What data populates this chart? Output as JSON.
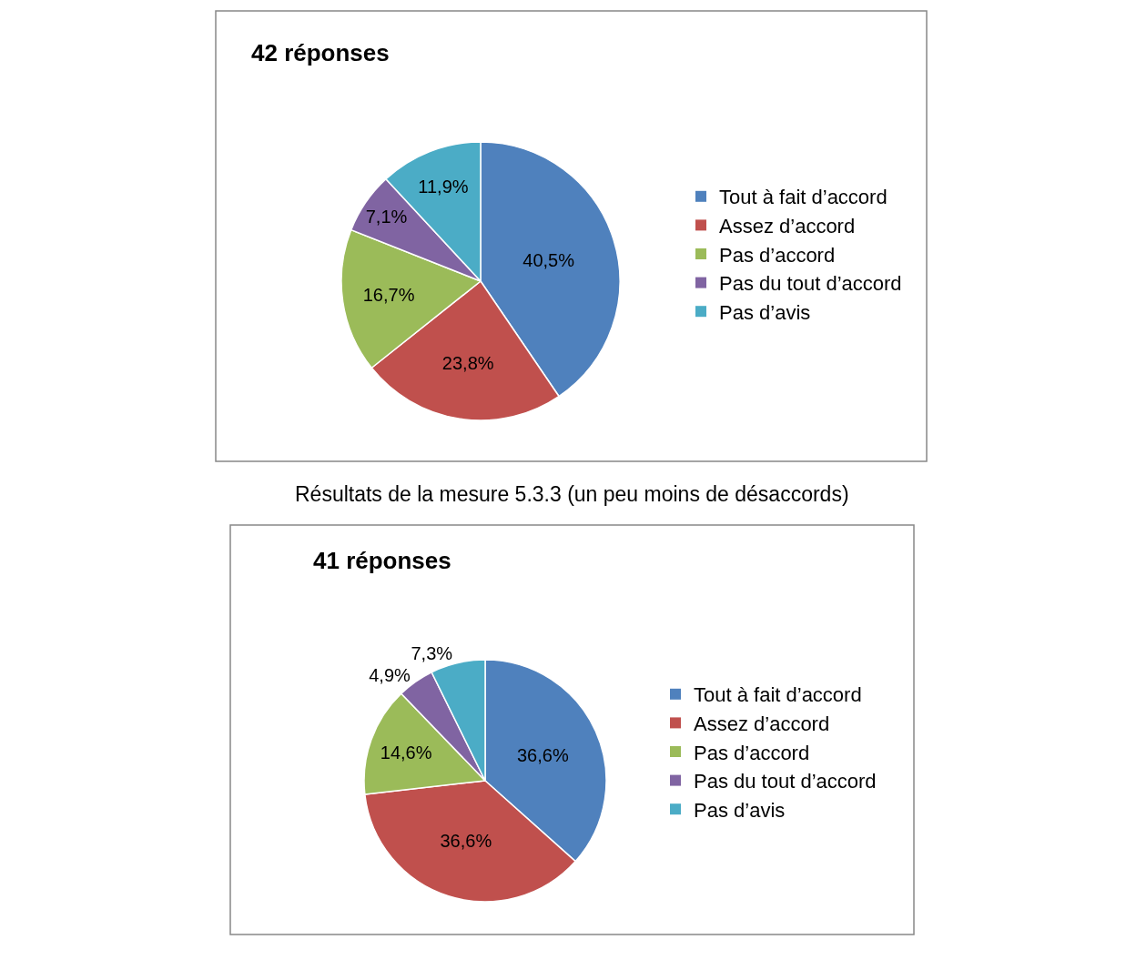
{
  "chart_data": [
    {
      "type": "pie",
      "title": "42 réponses",
      "categories": [
        "Tout à fait d’accord",
        "Assez d’accord",
        "Pas d’accord",
        "Pas du tout d’accord",
        "Pas d’avis"
      ],
      "values": [
        40.5,
        23.8,
        16.7,
        7.1,
        11.9
      ],
      "value_labels": [
        "40,5%",
        "23,8%",
        "16,7%",
        "7,1%",
        "11,9%"
      ],
      "colors": [
        "#4f81bd",
        "#c0504d",
        "#9bbb59",
        "#8064a2",
        "#4bacc6"
      ],
      "legend": "right"
    },
    {
      "type": "pie",
      "title": "41 réponses",
      "categories": [
        "Tout à fait d’accord",
        "Assez d’accord",
        "Pas d’accord",
        "Pas du tout d’accord",
        "Pas d’avis"
      ],
      "values": [
        36.6,
        36.6,
        14.6,
        4.9,
        7.3
      ],
      "value_labels": [
        "36,6%",
        "36,6%",
        "14,6%",
        "4,9%",
        "7,3%"
      ],
      "colors": [
        "#4f81bd",
        "#c0504d",
        "#9bbb59",
        "#8064a2",
        "#4bacc6"
      ],
      "legend": "right",
      "annotations": [
        "Résultats de la mesure 5.3.3 (un peu moins de désaccords)"
      ]
    }
  ]
}
